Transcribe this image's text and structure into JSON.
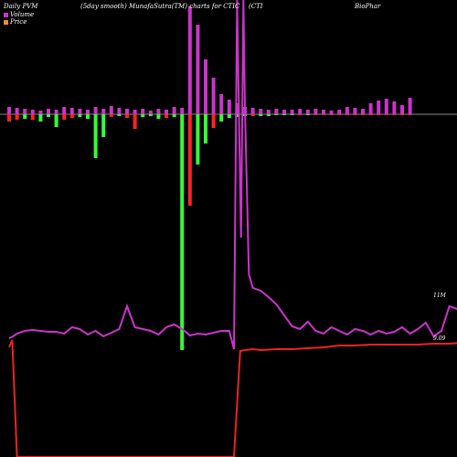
{
  "header": {
    "left": "Daily PVM",
    "mid": "(5day smooth) MunafaSutra(TM) charts for CTIC",
    "right1": "(CTI",
    "right2": "BioPhar"
  },
  "legend": {
    "volume": "Volume",
    "price": "Price"
  },
  "colors": {
    "background": "#000000",
    "up_volume": "#cc33cc",
    "green_volume": "#33ff33",
    "red_volume": "#ff2222",
    "volume_line": "#cc33cc",
    "price_line": "#ee2222",
    "zero_line": "#888888"
  },
  "chart_data": {
    "type": "bar",
    "title": "Daily PVM (5day smooth) MunafaSutra(TM) charts for CTIC",
    "axis_labels": [
      "11M",
      "9.09"
    ],
    "bars": [
      {
        "up": 8,
        "down": 8,
        "dc": "red"
      },
      {
        "up": 7,
        "down": 6,
        "dc": "red"
      },
      {
        "up": 6,
        "down": 5,
        "dc": "green"
      },
      {
        "up": 5,
        "down": 6,
        "dc": "red"
      },
      {
        "up": 4,
        "down": 8,
        "dc": "green"
      },
      {
        "up": 6,
        "down": 3,
        "dc": "green"
      },
      {
        "up": 5,
        "down": 14,
        "dc": "green"
      },
      {
        "up": 8,
        "down": 6,
        "dc": "red"
      },
      {
        "up": 7,
        "down": 4,
        "dc": "red"
      },
      {
        "up": 6,
        "down": 3,
        "dc": "green"
      },
      {
        "up": 5,
        "down": 5,
        "dc": "green"
      },
      {
        "up": 8,
        "down": 48,
        "dc": "green"
      },
      {
        "up": 6,
        "down": 25,
        "dc": "green"
      },
      {
        "up": 9,
        "down": 3,
        "dc": "red"
      },
      {
        "up": 7,
        "down": 2,
        "dc": "green"
      },
      {
        "up": 6,
        "down": 4,
        "dc": "red"
      },
      {
        "up": 5,
        "down": 16,
        "dc": "red"
      },
      {
        "up": 6,
        "down": 3,
        "dc": "green"
      },
      {
        "up": 4,
        "down": 2,
        "dc": "green"
      },
      {
        "up": 6,
        "down": 5,
        "dc": "green"
      },
      {
        "up": 5,
        "down": 4,
        "dc": "red"
      },
      {
        "up": 8,
        "down": 3,
        "dc": "green"
      },
      {
        "up": 7,
        "down": 258,
        "dc": "green"
      },
      {
        "up": 118,
        "down": 100,
        "dc": "red"
      },
      {
        "up": 98,
        "down": 55,
        "dc": "green"
      },
      {
        "up": 60,
        "down": 32,
        "dc": "green"
      },
      {
        "up": 40,
        "down": 15,
        "dc": "red"
      },
      {
        "up": 22,
        "down": 8,
        "dc": "green"
      },
      {
        "up": 16,
        "down": 4,
        "dc": "green"
      },
      {
        "up": 12,
        "down": 3,
        "dc": "green"
      },
      {
        "up": 8,
        "down": 2,
        "dc": "green"
      },
      {
        "up": 7,
        "down": 2,
        "dc": "red"
      },
      {
        "up": 6,
        "down": 2,
        "dc": "green"
      },
      {
        "up": 5,
        "down": 2,
        "dc": "green"
      },
      {
        "up": 6,
        "down": 1,
        "dc": "green"
      },
      {
        "up": 5,
        "down": 1,
        "dc": "green"
      },
      {
        "up": 5,
        "down": 1,
        "dc": "green"
      },
      {
        "up": 6,
        "down": 1,
        "dc": "red"
      },
      {
        "up": 5,
        "down": 1,
        "dc": "green"
      },
      {
        "up": 6,
        "down": 1,
        "dc": "red"
      },
      {
        "up": 5,
        "down": 1,
        "dc": "red"
      },
      {
        "up": 4,
        "down": 1,
        "dc": "red"
      },
      {
        "up": 5,
        "down": 1,
        "dc": "red"
      },
      {
        "up": 8,
        "down": 1,
        "dc": "red"
      },
      {
        "up": 7,
        "down": 1,
        "dc": "red"
      },
      {
        "up": 6,
        "down": 1,
        "dc": "red"
      },
      {
        "up": 12,
        "down": 1,
        "dc": "red"
      },
      {
        "up": 15,
        "down": 1,
        "dc": "red"
      },
      {
        "up": 17,
        "down": 1,
        "dc": "red"
      },
      {
        "up": 14,
        "down": 1,
        "dc": "red"
      },
      {
        "up": 10,
        "down": 1,
        "dc": "red"
      },
      {
        "up": 18,
        "down": 1,
        "dc": "red"
      }
    ],
    "volume_line": [
      [
        0,
        370
      ],
      [
        0.5,
        368
      ],
      [
        1,
        365
      ],
      [
        2,
        362
      ],
      [
        3,
        361
      ],
      [
        4,
        362
      ],
      [
        5,
        363
      ],
      [
        6,
        363
      ],
      [
        7,
        365
      ],
      [
        8,
        358
      ],
      [
        9,
        360
      ],
      [
        10,
        366
      ],
      [
        11,
        362
      ],
      [
        12,
        368
      ],
      [
        13,
        364
      ],
      [
        14,
        360
      ],
      [
        15,
        335
      ],
      [
        16,
        358
      ],
      [
        17,
        360
      ],
      [
        18,
        362
      ],
      [
        19,
        366
      ],
      [
        20,
        358
      ],
      [
        21,
        355
      ],
      [
        22,
        360
      ],
      [
        23,
        367
      ],
      [
        24,
        365
      ],
      [
        25,
        366
      ],
      [
        26,
        364
      ],
      [
        27,
        362
      ],
      [
        28,
        362
      ],
      [
        28.6,
        382
      ],
      [
        29,
        0
      ],
      [
        29.5,
        260
      ],
      [
        29.8,
        0
      ],
      [
        30,
        118
      ],
      [
        30.5,
        300
      ],
      [
        31,
        315
      ],
      [
        32,
        318
      ],
      [
        33,
        325
      ],
      [
        34,
        333
      ],
      [
        35,
        345
      ],
      [
        36,
        357
      ],
      [
        37,
        360
      ],
      [
        38,
        352
      ],
      [
        39,
        362
      ],
      [
        40,
        365
      ],
      [
        41,
        358
      ],
      [
        42,
        362
      ],
      [
        43,
        366
      ],
      [
        44,
        360
      ],
      [
        45,
        362
      ],
      [
        46,
        366
      ],
      [
        47,
        362
      ],
      [
        48,
        365
      ],
      [
        49,
        363
      ],
      [
        50,
        358
      ],
      [
        51,
        365
      ],
      [
        52,
        360
      ],
      [
        53,
        353
      ],
      [
        54,
        368
      ],
      [
        55,
        362
      ],
      [
        56,
        335
      ],
      [
        57,
        338
      ],
      [
        58,
        345
      ],
      [
        59,
        355
      ],
      [
        60,
        362
      ],
      [
        61,
        325
      ]
    ],
    "price_line": [
      [
        0,
        380
      ],
      [
        0.4,
        372
      ],
      [
        1,
        500
      ],
      [
        28.6,
        500
      ],
      [
        29.4,
        384
      ],
      [
        30,
        383
      ],
      [
        31,
        382
      ],
      [
        32,
        383
      ],
      [
        34,
        382
      ],
      [
        36,
        382
      ],
      [
        38,
        381
      ],
      [
        40,
        380
      ],
      [
        42,
        378
      ],
      [
        44,
        378
      ],
      [
        46,
        377
      ],
      [
        48,
        377
      ],
      [
        50,
        377
      ],
      [
        52,
        377
      ],
      [
        54,
        376
      ],
      [
        56,
        376
      ],
      [
        58,
        375
      ],
      [
        60,
        375
      ],
      [
        61,
        375
      ]
    ]
  }
}
